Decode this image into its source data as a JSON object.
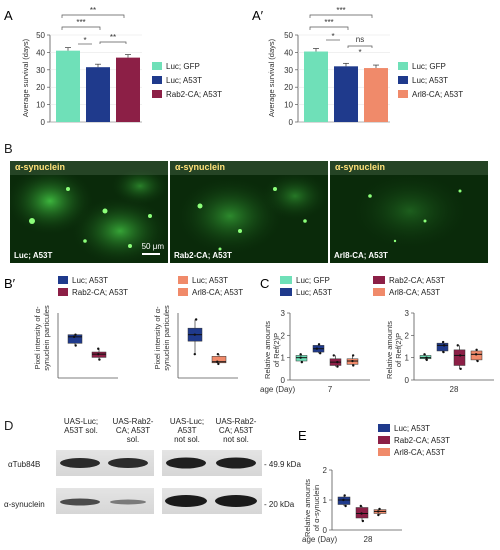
{
  "panels": {
    "A": "A",
    "A2": "A′",
    "B": "B",
    "B2": "B′",
    "C": "C",
    "D": "D",
    "E": "E"
  },
  "colors": {
    "gfp": "#6fe0b8",
    "luc": "#1f3a8c",
    "rab2": "#8c1f46",
    "arl8": "#f08a6a"
  },
  "panel_A": {
    "ylabel": "Average survival (days)",
    "legend": [
      "Luc; GFP",
      "Luc; A53T",
      "Rab2-CA; A53T"
    ],
    "sig": [
      "**",
      "***",
      "*",
      "**"
    ],
    "chart_data": {
      "type": "bar",
      "categories": [
        "Luc; GFP",
        "Luc; A53T",
        "Rab2-CA; A53T"
      ],
      "values": [
        41,
        31.5,
        37
      ],
      "ylim": [
        0,
        50
      ],
      "yticks": [
        "0",
        "10",
        "20",
        "30",
        "40",
        "50"
      ]
    }
  },
  "panel_A2": {
    "ylabel": "Average survival (days)",
    "legend": [
      "Luc; GFP",
      "Luc; A53T",
      "Arl8-CA; A53T"
    ],
    "sig": [
      "***",
      "***",
      "*",
      "ns",
      "*"
    ],
    "chart_data": {
      "type": "bar",
      "categories": [
        "Luc; GFP",
        "Luc; A53T",
        "Arl8-CA; A53T"
      ],
      "values": [
        40.5,
        32,
        31
      ],
      "ylim": [
        0,
        50
      ],
      "yticks": [
        "0",
        "10",
        "20",
        "30",
        "40",
        "50"
      ]
    }
  },
  "panel_B": {
    "stain": "α-synuclein",
    "images": [
      "Luc; A53T",
      "Rab2-CA; A53T",
      "Arl8-CA; A53T"
    ],
    "scalebar": "50 μm"
  },
  "panel_B2": {
    "ylabel_1": "Pixel intensity of α-",
    "ylabel_2": "synuclein particules",
    "left": {
      "legend": [
        "Luc; A53T",
        "Rab2-CA; A53T"
      ],
      "boxes": [
        {
          "q1": 1.6,
          "med": 1.9,
          "q3": 2.0,
          "min": 1.5,
          "max": 2.0
        },
        {
          "q1": 0.95,
          "med": 1.1,
          "q3": 1.2,
          "min": 0.85,
          "max": 1.35
        }
      ]
    },
    "right": {
      "legend": [
        "Luc; A53T",
        "Arl8-CA; A53T"
      ],
      "boxes": [
        {
          "q1": 1.7,
          "med": 2.0,
          "q3": 2.3,
          "min": 1.1,
          "max": 2.7
        },
        {
          "q1": 0.7,
          "med": 0.75,
          "q3": 1.0,
          "min": 0.65,
          "max": 1.1
        }
      ]
    }
  },
  "panel_C": {
    "legend": [
      "Luc; GFP",
      "Rab2-CA; A53T",
      "Luc; A53T",
      "Arl8-CA; A53T"
    ],
    "ylabel_1": "Relative amounts",
    "ylabel_2": "of Ref(2)P",
    "xlabel": "age (Day)",
    "yticks": [
      "0",
      "1",
      "2",
      "3"
    ],
    "days": [
      "7",
      "28"
    ],
    "day7": [
      {
        "q1": 0.85,
        "med": 1.0,
        "q3": 1.1,
        "min": 0.8,
        "max": 1.15
      },
      {
        "q1": 1.25,
        "med": 1.4,
        "q3": 1.55,
        "min": 1.2,
        "max": 1.6
      },
      {
        "q1": 0.65,
        "med": 0.8,
        "q3": 0.95,
        "min": 0.6,
        "max": 1.1
      },
      {
        "q1": 0.7,
        "med": 0.85,
        "q3": 0.95,
        "min": 0.65,
        "max": 1.1
      }
    ],
    "day28": [
      {
        "q1": 0.95,
        "med": 1.0,
        "q3": 1.1,
        "min": 0.9,
        "max": 1.15
      },
      {
        "q1": 1.3,
        "med": 1.55,
        "q3": 1.65,
        "min": 1.25,
        "max": 1.7
      },
      {
        "q1": 0.65,
        "med": 1.1,
        "q3": 1.35,
        "min": 0.5,
        "max": 1.55
      },
      {
        "q1": 0.9,
        "med": 1.15,
        "q3": 1.3,
        "min": 0.85,
        "max": 1.35
      }
    ]
  },
  "panel_D": {
    "lanes": [
      [
        "UAS-Luc;",
        "A53T sol."
      ],
      [
        "UAS-Rab2-",
        "CA; A53T",
        "sol."
      ],
      [
        "UAS-Luc;",
        "A53T",
        "not sol."
      ],
      [
        "UAS-Rab2-",
        "CA; A53T",
        "not sol."
      ]
    ],
    "rows": [
      "αTub84B",
      "α-synuclein"
    ],
    "kda": [
      "- 49.9 kDa",
      "- 20 kDa"
    ]
  },
  "panel_E": {
    "legend": [
      "Luc; A53T",
      "Rab2-CA; A53T",
      "Arl8-CA; A53T"
    ],
    "ylabel_1": "Relative amounts",
    "ylabel_2": "of α-synuclein",
    "xlabel": "age (Day)",
    "day": "28",
    "yticks": [
      "0",
      "1",
      "2"
    ],
    "boxes": [
      {
        "q1": 0.85,
        "med": 1.0,
        "q3": 1.1,
        "min": 0.8,
        "max": 1.15
      },
      {
        "q1": 0.4,
        "med": 0.55,
        "q3": 0.75,
        "min": 0.3,
        "max": 0.8
      },
      {
        "q1": 0.55,
        "med": 0.62,
        "q3": 0.68,
        "min": 0.5,
        "max": 0.7
      }
    ]
  }
}
